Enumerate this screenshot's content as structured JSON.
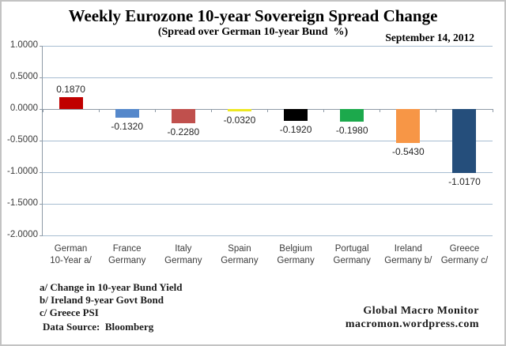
{
  "header": {
    "title": "Weekly Eurozone 10-year Sovereign Spread Change",
    "subtitle": "(Spread over German 10-year Bund  %)",
    "date": "September 14, 2012"
  },
  "chart_data": {
    "type": "bar",
    "title": "Weekly Eurozone 10-year Sovereign Spread Change",
    "subtitle": "(Spread over German 10-year Bund %)",
    "categories": [
      [
        "German",
        "10-Year a/"
      ],
      [
        "France",
        "Germany"
      ],
      [
        "Italy",
        "Germany"
      ],
      [
        "Spain",
        "Germany"
      ],
      [
        "Belgium",
        "Germany"
      ],
      [
        "Portugal",
        "Germany"
      ],
      [
        "Ireland",
        "Germany b/"
      ],
      [
        "Greece",
        "Germany c/"
      ]
    ],
    "values": [
      0.187,
      -0.132,
      -0.228,
      -0.032,
      -0.192,
      -0.198,
      -0.543,
      -1.017
    ],
    "value_labels": [
      "0.1870",
      "-0.1320",
      "-0.2280",
      "-0.0320",
      "-0.1920",
      "-0.1980",
      "-0.5430",
      "-1.0170"
    ],
    "bar_colors": [
      "#c00000",
      "#5588cb",
      "#c0504d",
      "#ede821",
      "#000000",
      "#1ca94c",
      "#f79646",
      "#254e7b"
    ],
    "xlabel": "",
    "ylabel": "",
    "ylim": [
      -2.0,
      1.0
    ],
    "yticks": [
      "1.0000",
      "0.5000",
      "0.0000",
      "-0.5000",
      "-1.0000",
      "-1.5000",
      "-2.0000"
    ],
    "grid": true,
    "gridline_color": "#a7bdd1",
    "axis_color": "#8e9aa6",
    "legend": "none"
  },
  "footnotes": {
    "a": "a/ Change in 10-year Bund Yield",
    "b": "b/ Ireland 9-year Govt Bond",
    "c": "c/ Greece PSI",
    "source": "Data Source:  Bloomberg"
  },
  "branding": {
    "line1": "Global Macro Monitor",
    "line2": "macromon.wordpress.com"
  }
}
